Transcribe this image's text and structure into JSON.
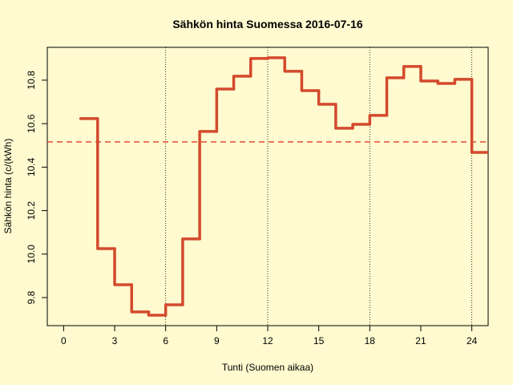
{
  "chart_data": {
    "type": "step",
    "title": "Sähkön hinta Suomessa 2016-07-16",
    "x_label": "Tunti (Suomen aikaa)",
    "y_label": "Sähkön hinta (c/(kWh)",
    "x": [
      1,
      2,
      3,
      4,
      5,
      6,
      7,
      8,
      9,
      10,
      11,
      12,
      13,
      14,
      15,
      16,
      17,
      18,
      19,
      20,
      21,
      22,
      23,
      24,
      25
    ],
    "series": [
      {
        "color": "#d34a2c",
        "values": [
          10.623,
          10.025,
          9.859,
          9.734,
          9.719,
          9.767,
          10.07,
          10.564,
          10.759,
          10.818,
          10.9,
          10.903,
          10.841,
          10.752,
          10.689,
          10.579,
          10.597,
          10.638,
          10.811,
          10.863,
          10.796,
          10.785,
          10.804,
          10.468,
          10.468
        ]
      }
    ],
    "mean_line": {
      "value": 10.516,
      "color": "#e03a2a"
    },
    "vlines": [
      6,
      12,
      18,
      24
    ],
    "xlim": [
      -0.96,
      24.96
    ],
    "ylim": [
      9.671,
      10.951
    ],
    "xticks": [
      0,
      3,
      6,
      9,
      12,
      15,
      18,
      21,
      24
    ],
    "yticks": [
      {
        "value": 9.8,
        "label": "9.8"
      },
      {
        "value": 10.0,
        "label": "10.0"
      },
      {
        "value": 10.2,
        "label": "10.2"
      },
      {
        "value": 10.4,
        "label": "10.4"
      },
      {
        "value": 10.6,
        "label": "10.6"
      },
      {
        "value": 10.8,
        "label": "10.8"
      }
    ],
    "background": "#fffacf"
  }
}
